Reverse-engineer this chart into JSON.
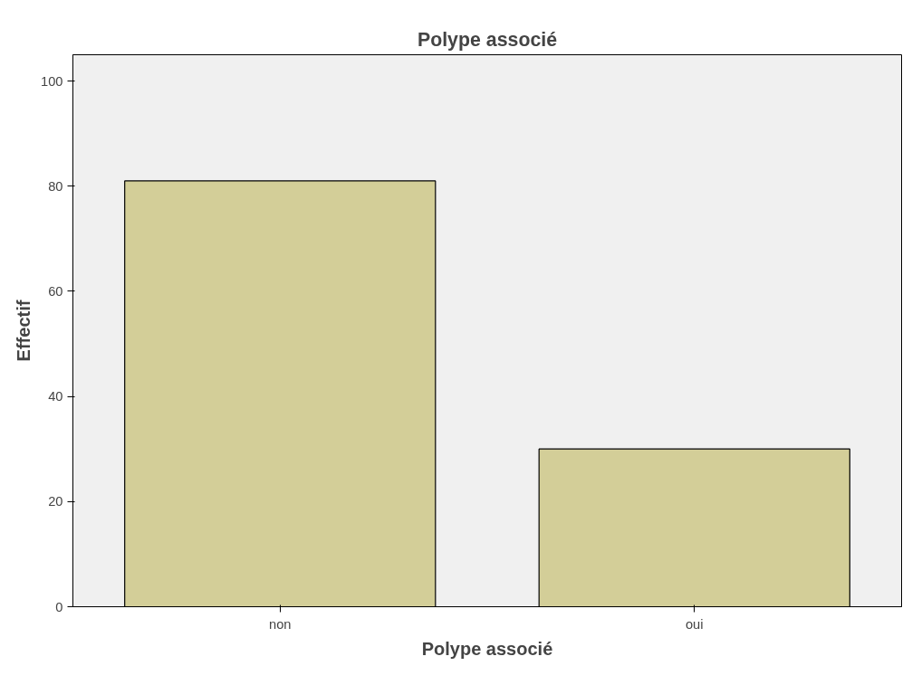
{
  "chart_data": {
    "type": "bar",
    "title": "Polype associé",
    "xlabel": "Polype associé",
    "ylabel": "Effectif",
    "categories": [
      "non",
      "oui"
    ],
    "values": [
      81,
      30
    ],
    "color": "#d3ce98",
    "ylim": [
      0,
      105
    ],
    "yticks": [
      0,
      20,
      40,
      60,
      80,
      100
    ],
    "grid": false
  }
}
